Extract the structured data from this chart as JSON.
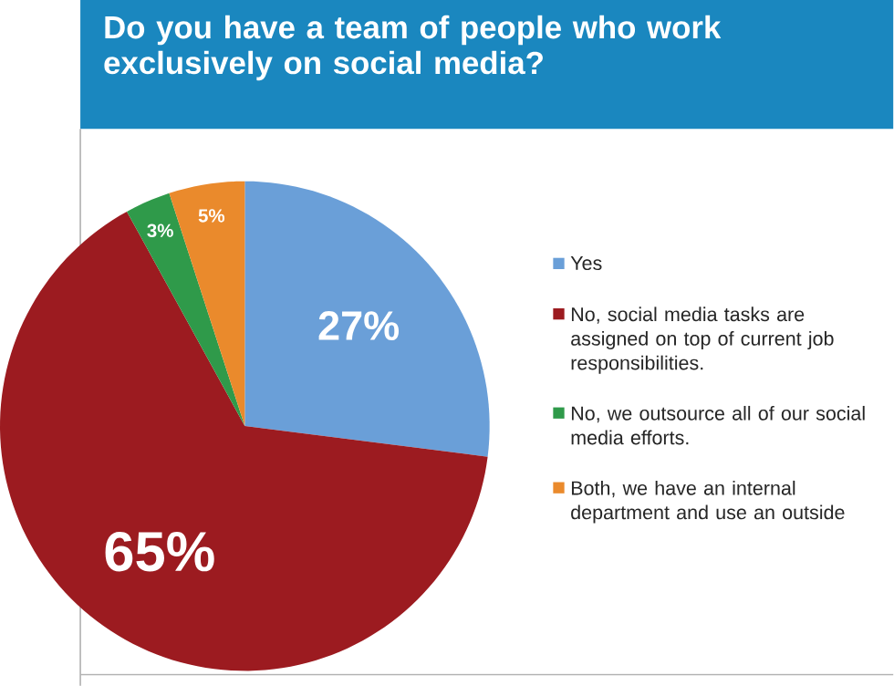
{
  "chart_data": {
    "type": "pie",
    "title": "Do you have a team of people who work exclusively on social media?",
    "categories": [
      "Yes",
      "No, social media tasks are assigned on top of current job responsibilities.",
      "No, we outsource all of our social media efforts.",
      "Both, we have an internal department and use an outside"
    ],
    "values": [
      27,
      65,
      3,
      5
    ],
    "value_labels": [
      "27%",
      "65%",
      "3%",
      "5%"
    ],
    "colors": [
      "#6a9fd8",
      "#9c1b20",
      "#2f9a4a",
      "#ea8a2c"
    ],
    "legend": "right"
  }
}
